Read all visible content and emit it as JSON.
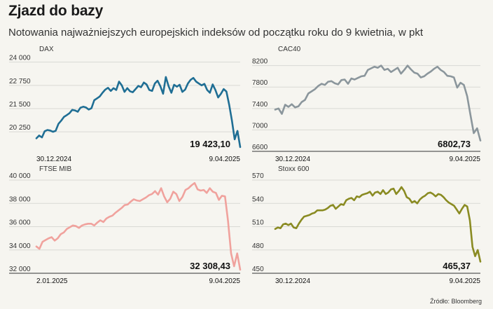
{
  "header": {
    "title": "Zjazd do bazy",
    "subtitle": "Notowania najważniejszych europejskich indeksów od początku roku do 9 kwietnia, w pkt"
  },
  "footer": {
    "source": "Źródło: Bloomberg"
  },
  "chart_data": [
    {
      "type": "line",
      "name": "DAX",
      "color": "#1f6e94",
      "ylim": [
        19200,
        24100
      ],
      "yticks": [
        20250,
        21500,
        22750,
        24000
      ],
      "ytick_labels": [
        "20 250",
        "21 500",
        "22 750",
        "24 000"
      ],
      "x_start_label": "30.12.2024",
      "x_end_label": "9.04.2025",
      "last_value_label": "19 423,10",
      "values": [
        19900,
        20050,
        19950,
        20280,
        20350,
        20320,
        20250,
        20310,
        20680,
        20850,
        21050,
        21150,
        21250,
        21430,
        21400,
        21330,
        21550,
        21600,
        21560,
        21450,
        21520,
        21950,
        22050,
        22150,
        22350,
        22520,
        22620,
        22450,
        22600,
        22500,
        22950,
        22750,
        22400,
        22600,
        22430,
        22380,
        22550,
        22720,
        22650,
        22900,
        22800,
        22500,
        22450,
        22850,
        23000,
        22700,
        22300,
        23200,
        22700,
        22350,
        22780,
        22680,
        22780,
        22400,
        22520,
        22850,
        23050,
        23150,
        22950,
        22850,
        22750,
        22830,
        22500,
        22350,
        22800,
        22500,
        22100,
        22300,
        22550,
        22420,
        21700,
        20850,
        19850,
        20300,
        19430
      ]
    },
    {
      "type": "line",
      "name": "CAC40",
      "color": "#8b969c",
      "ylim": [
        6600,
        8300
      ],
      "yticks": [
        6600,
        7000,
        7400,
        7800,
        8200
      ],
      "ytick_labels": [
        "6600",
        "7000",
        "7400",
        "7800",
        "8200"
      ],
      "x_start_label": "30.12.2024",
      "x_end_label": "9.04.2025",
      "last_value_label": "6802,73",
      "values": [
        7380,
        7400,
        7300,
        7470,
        7430,
        7480,
        7420,
        7440,
        7520,
        7560,
        7680,
        7720,
        7760,
        7820,
        7860,
        7840,
        7900,
        7910,
        7870,
        7850,
        7930,
        7940,
        7860,
        7960,
        7940,
        7970,
        8000,
        8010,
        8120,
        8150,
        8180,
        8160,
        8200,
        8120,
        8140,
        8080,
        8120,
        8160,
        8050,
        8120,
        8200,
        8130,
        8070,
        8050,
        7980,
        8000,
        8050,
        8090,
        8140,
        8180,
        8120,
        8080,
        8010,
        8000,
        7980,
        7790,
        7880,
        7840,
        7630,
        7280,
        6940,
        7030,
        6802
      ]
    },
    {
      "type": "line",
      "name": "FTSE MIB",
      "color": "#f0a29d",
      "ylim": [
        32000,
        40000
      ],
      "yticks": [
        32000,
        34000,
        36000,
        38000,
        40000
      ],
      "ytick_labels": [
        "32 000",
        "34 000",
        "36 000",
        "38 000",
        "40 000"
      ],
      "x_start_label": "2.01.2025",
      "x_end_label": "9.04.2025",
      "last_value_label": "32 308,43",
      "values": [
        34300,
        34100,
        34700,
        34850,
        35000,
        35100,
        34800,
        35000,
        35350,
        35500,
        35800,
        35950,
        36100,
        36050,
        35900,
        36100,
        36200,
        36250,
        36250,
        36100,
        36350,
        36550,
        36400,
        36700,
        36850,
        36950,
        37200,
        37400,
        37600,
        37850,
        37900,
        38150,
        38350,
        38250,
        38200,
        38350,
        38500,
        38700,
        38800,
        39050,
        38750,
        39300,
        38600,
        38100,
        38400,
        39000,
        38800,
        38200,
        38550,
        39150,
        39300,
        39550,
        39750,
        39200,
        39100,
        39150,
        38900,
        39300,
        39000,
        38900,
        38300,
        38650,
        38600,
        36500,
        33700,
        32600,
        33700,
        32308
      ]
    },
    {
      "type": "line",
      "name": "Stoxx 600",
      "color": "#8a8b22",
      "ylim": [
        450,
        570
      ],
      "yticks": [
        450,
        480,
        510,
        540,
        570
      ],
      "ytick_labels": [
        "450",
        "480",
        "510",
        "540",
        "570"
      ],
      "x_start_label": "30.12.2024",
      "x_end_label": "9.04.2025",
      "last_value_label": "465,37",
      "values": [
        507,
        509,
        508,
        513,
        514,
        512,
        514,
        509,
        508,
        514,
        519,
        523,
        524,
        525,
        527,
        528,
        531,
        531,
        531,
        532,
        534,
        537,
        538,
        533,
        536,
        539,
        538,
        544,
        546,
        547,
        544,
        549,
        548,
        551,
        552,
        553,
        555,
        550,
        554,
        555,
        552,
        557,
        552,
        554,
        558,
        559,
        552,
        556,
        561,
        556,
        548,
        546,
        541,
        543,
        540,
        545,
        548,
        550,
        553,
        554,
        552,
        549,
        552,
        551,
        548,
        544,
        541,
        539,
        537,
        532,
        527,
        533,
        538,
        536,
        518,
        484,
        472,
        480,
        465
      ]
    }
  ]
}
